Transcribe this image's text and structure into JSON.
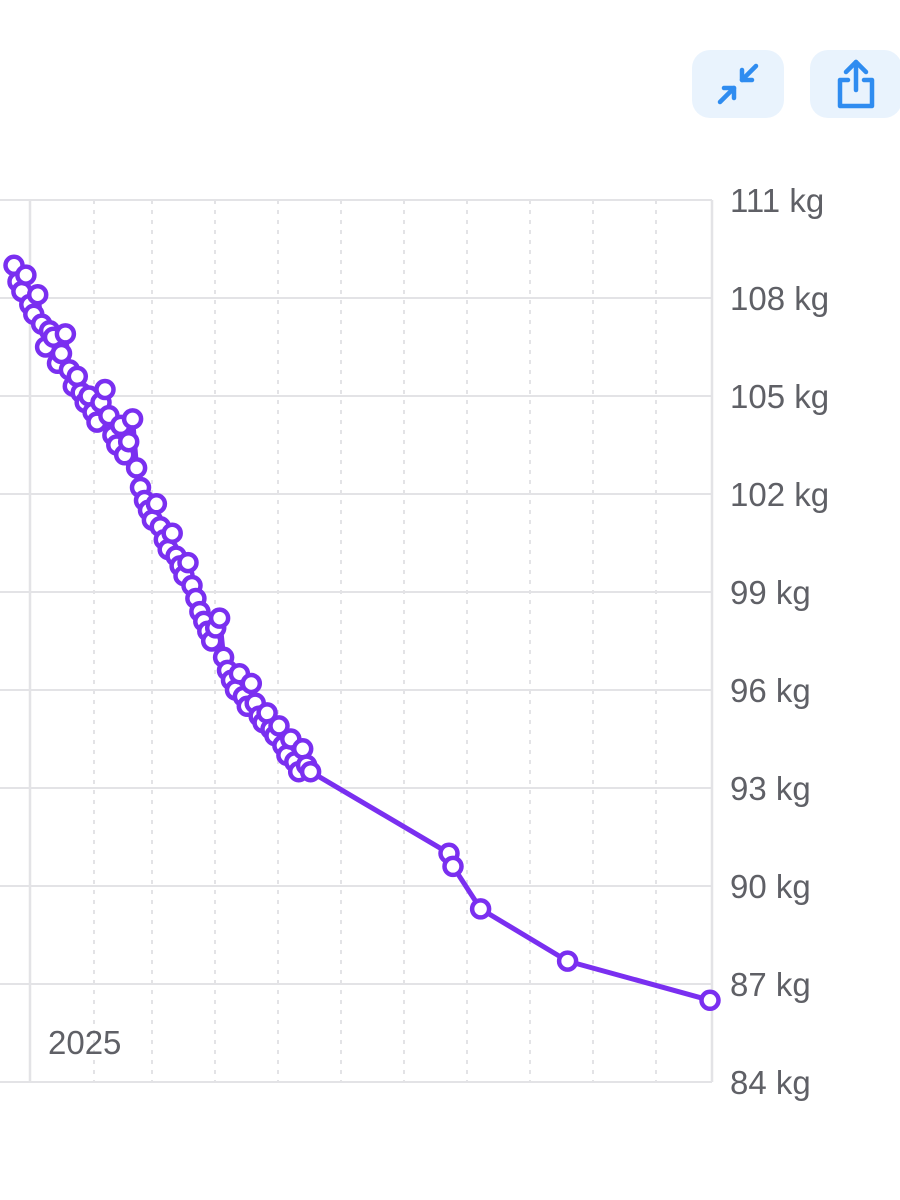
{
  "toolbar": {
    "collapse_icon": "arrows-collapse-icon",
    "share_icon": "share-icon",
    "accent": "#2f8cf0"
  },
  "colors": {
    "series": "#7a2ff0",
    "grid": "#e3e3e6",
    "tick_text": "#5f6066"
  },
  "chart_data": {
    "type": "line",
    "title": "",
    "xlabel": "",
    "ylabel": "",
    "x_annotation": "2025",
    "unit": "kg",
    "ylim": [
      84,
      111
    ],
    "yticks": [
      111,
      108,
      105,
      102,
      99,
      96,
      93,
      90,
      87,
      84
    ],
    "ytick_labels": [
      "111 kg",
      "108 kg",
      "105 kg",
      "102 kg",
      "99 kg",
      "96 kg",
      "93 kg",
      "90 kg",
      "87 kg",
      "84 kg"
    ],
    "grid": true,
    "x_index": [
      0,
      1,
      2,
      3,
      4,
      5,
      6,
      7,
      8,
      9,
      10,
      11,
      12,
      13,
      14,
      15,
      16,
      17,
      18,
      19,
      20,
      21,
      22,
      23,
      24,
      25,
      26,
      27,
      28,
      29,
      30,
      31,
      32,
      33,
      34,
      35,
      36,
      37,
      38,
      39,
      40,
      41,
      42,
      43,
      44,
      45,
      46,
      47,
      48,
      49,
      50,
      51,
      52,
      53,
      54,
      55,
      56,
      57,
      58,
      59,
      60,
      61,
      62,
      63,
      64,
      65,
      66,
      67,
      68,
      69,
      70,
      71,
      72,
      73,
      74,
      75,
      76,
      77,
      78,
      79,
      80,
      81,
      82,
      83,
      84,
      85,
      86,
      87,
      88,
      89,
      90,
      91,
      92,
      93,
      94,
      95,
      96,
      97,
      98,
      99,
      100,
      101,
      102,
      103,
      104,
      105,
      106,
      107,
      108,
      109,
      110,
      111,
      112,
      113,
      114,
      115,
      116,
      117,
      118,
      119,
      120,
      121,
      122,
      123,
      124,
      125,
      126,
      127,
      128,
      129,
      130,
      131,
      132,
      133,
      134,
      135,
      136,
      137,
      138,
      139,
      140,
      141,
      142,
      143,
      144,
      145,
      146,
      147,
      148,
      149,
      150,
      151,
      152,
      153,
      154,
      155,
      156,
      157,
      158,
      159,
      160,
      161,
      162,
      163,
      164,
      165,
      166,
      167,
      168,
      169,
      170,
      171,
      172,
      173,
      174,
      175,
      176,
      177,
      178,
      179,
      180,
      181,
      182,
      183,
      184,
      185,
      186,
      187,
      188,
      189,
      190,
      191,
      192,
      193,
      194,
      195,
      196,
      197,
      198,
      199,
      200,
      201,
      202,
      203,
      204,
      205,
      206,
      207,
      208,
      209,
      210,
      211,
      212,
      213,
      214,
      215,
      216,
      217,
      218,
      219,
      220,
      221,
      222,
      223,
      224,
      225,
      226,
      227,
      228,
      229,
      230,
      231,
      232,
      233,
      234,
      235,
      236,
      237,
      238,
      239,
      240,
      241,
      242,
      243,
      244,
      245,
      246,
      247,
      248,
      249,
      250,
      251,
      252,
      253,
      254,
      255,
      256,
      257,
      258,
      259,
      260,
      261,
      262,
      263,
      264,
      265,
      266,
      267,
      268,
      269,
      270,
      271,
      272,
      273,
      274,
      275,
      276,
      277,
      278,
      279,
      280,
      281,
      282,
      283,
      284,
      285,
      286,
      287,
      288,
      289,
      290,
      291,
      292,
      293,
      294,
      295,
      296,
      297,
      298,
      299,
      300,
      301,
      302,
      303,
      304,
      305,
      306,
      307,
      308,
      309,
      310,
      311,
      312,
      313,
      314,
      315,
      316,
      317,
      318,
      319,
      320,
      321,
      322,
      323,
      324,
      325,
      326,
      327,
      328,
      329,
      330,
      331,
      332,
      333,
      334,
      335,
      336,
      337,
      338,
      339,
      340,
      341,
      342,
      343,
      344,
      345,
      346,
      347,
      348,
      349,
      350,
      351,
      352,
      353,
      354,
      355,
      356,
      357,
      358,
      359,
      360,
      361,
      362,
      363,
      364,
      365,
      366,
      367,
      368,
      369,
      370,
      371,
      372,
      373,
      374,
      375,
      376,
      377,
      378,
      379,
      380,
      381,
      382,
      383,
      384,
      385,
      386,
      387,
      388,
      389,
      390,
      391,
      392,
      393,
      394,
      395,
      396,
      397,
      398,
      399,
      400,
      401,
      402,
      403,
      404,
      405,
      406,
      407,
      408,
      409,
      410,
      411,
      412,
      413,
      414,
      415,
      416,
      417,
      418,
      419,
      420,
      421,
      422,
      423,
      424,
      425,
      426,
      427,
      428,
      429,
      430,
      431,
      432,
      433,
      434,
      435,
      436,
      437,
      438,
      439,
      440,
      441,
      442,
      443,
      444,
      445,
      446,
      447,
      448,
      449,
      450,
      451,
      452,
      453,
      454,
      455,
      456,
      457,
      458,
      459,
      460,
      461,
      462,
      463,
      464,
      465,
      466,
      467,
      468,
      469,
      470,
      471,
      472,
      473,
      474,
      475,
      476,
      477,
      478,
      479,
      480,
      481,
      482,
      483,
      484,
      485,
      486,
      487,
      488,
      489,
      490,
      491,
      492,
      493,
      494,
      495,
      496,
      497,
      498,
      499,
      500,
      501,
      502,
      503,
      504,
      505,
      506,
      507,
      508,
      509,
      510,
      511,
      512,
      513,
      514,
      515,
      516,
      517,
      518,
      519,
      520,
      521,
      522,
      523,
      524,
      525,
      526,
      527,
      528,
      529,
      530,
      531,
      532,
      533,
      534,
      535,
      536,
      537,
      538,
      539,
      540,
      541,
      542,
      543,
      544,
      545,
      546,
      547,
      548,
      549,
      550,
      551,
      552,
      553,
      554,
      555,
      556,
      557,
      558,
      559,
      560,
      561,
      562,
      563,
      564,
      565,
      566,
      567,
      568,
      569,
      570,
      571,
      572,
      573,
      574,
      575,
      576,
      577,
      578,
      579,
      580,
      581,
      582,
      583,
      584,
      585,
      586,
      587,
      588,
      589,
      590,
      591,
      592,
      593,
      594,
      595,
      596,
      597,
      598,
      599,
      600,
      601,
      602,
      603,
      604,
      605,
      606,
      607,
      608,
      609,
      610,
      611,
      612,
      613,
      614,
      615,
      616,
      617,
      618,
      619,
      620,
      621,
      622,
      623,
      624,
      625,
      626,
      627,
      628,
      629,
      630,
      631,
      632,
      633,
      634,
      635,
      636,
      637,
      638,
      639,
      640,
      641,
      642,
      643,
      644,
      645,
      646,
      647,
      648,
      649,
      650,
      651,
      652,
      653,
      654,
      655,
      656,
      657,
      658,
      659,
      660,
      661,
      662,
      663,
      664,
      665,
      666,
      667,
      668,
      669,
      670,
      671,
      672,
      673,
      674,
      675,
      676,
      677,
      678,
      679,
      680,
      681,
      682,
      683,
      684,
      685,
      686,
      687,
      688,
      689,
      690,
      691,
      692,
      693,
      694,
      695,
      696,
      697,
      698,
      699,
      700,
      701,
      702,
      703,
      704,
      705,
      706,
      707,
      708,
      709,
      710,
      711,
      712,
      713,
      714,
      715,
      716,
      717,
      718,
      719,
      720,
      721,
      722,
      723,
      724,
      725,
      726,
      727,
      728,
      729,
      730,
      731,
      732,
      733,
      734,
      735,
      736,
      737,
      738,
      739,
      740,
      741,
      742,
      743,
      744,
      745,
      746,
      747,
      748,
      749,
      750,
      751,
      752,
      753,
      754,
      755,
      756,
      757,
      758,
      759,
      760,
      761,
      762,
      763,
      764,
      765,
      766,
      767,
      768,
      769,
      770,
      771,
      772,
      773,
      774,
      775,
      776,
      777,
      778,
      779,
      780,
      781,
      782,
      783,
      784,
      785,
      786,
      787,
      788,
      789,
      790,
      791,
      792,
      793,
      794,
      795,
      796,
      797,
      798,
      799,
      800,
      801,
      802,
      803,
      804,
      805,
      806,
      807,
      808,
      809,
      810,
      811,
      812,
      813,
      814,
      815,
      816,
      817,
      818,
      819,
      820,
      821,
      822,
      823,
      824,
      825,
      826,
      827,
      828,
      829,
      830,
      831,
      832,
      833,
      834,
      835,
      836,
      837,
      838,
      839,
      840,
      841,
      842,
      843,
      844,
      845,
      846,
      847,
      848,
      849,
      850,
      851,
      852,
      853,
      854,
      855,
      856,
      857,
      858,
      859,
      860,
      861,
      862,
      863,
      864,
      865,
      866,
      867,
      868,
      869,
      870,
      871,
      872,
      873,
      874,
      875,
      876,
      877,
      878,
      879,
      880,
      881,
      882,
      883,
      884,
      885,
      886,
      887,
      888,
      889,
      890,
      891,
      892,
      893,
      894,
      895,
      896,
      897,
      898,
      899,
      900,
      901,
      902,
      903,
      904,
      905,
      906,
      907,
      908,
      909,
      910,
      911,
      912,
      913,
      914,
      915,
      916,
      917,
      918,
      919,
      920,
      921,
      922,
      923,
      924,
      925,
      926,
      927,
      928,
      929,
      930,
      931,
      932,
      933,
      934,
      935,
      936,
      937,
      938,
      939,
      940,
      941,
      942,
      943,
      944,
      945,
      946,
      947,
      948,
      949,
      950,
      951,
      952,
      953,
      954,
      955,
      956,
      957,
      958,
      959,
      960,
      961,
      962,
      963,
      964,
      965,
      966,
      967,
      968,
      969,
      970,
      971,
      972,
      973,
      974,
      975,
      976,
      977,
      978,
      979,
      980,
      981,
      982,
      983,
      984,
      985,
      986,
      987,
      988,
      989,
      990,
      991,
      992,
      993,
      994,
      995,
      996,
      997,
      998,
      999
    ],
    "series": [
      {
        "points": [
          [
            0,
            109.0
          ],
          [
            2,
            108.5
          ],
          [
            4,
            108.2
          ],
          [
            6,
            108.7
          ],
          [
            8,
            107.8
          ],
          [
            10,
            107.5
          ],
          [
            12,
            108.1
          ],
          [
            14,
            107.2
          ],
          [
            16,
            106.5
          ],
          [
            18,
            107.0
          ],
          [
            20,
            106.8
          ],
          [
            22,
            106.0
          ],
          [
            24,
            106.3
          ],
          [
            26,
            106.9
          ],
          [
            28,
            105.8
          ],
          [
            30,
            105.3
          ],
          [
            32,
            105.6
          ],
          [
            34,
            105.1
          ],
          [
            36,
            104.8
          ],
          [
            38,
            105.0
          ],
          [
            40,
            104.5
          ],
          [
            42,
            104.2
          ],
          [
            44,
            104.8
          ],
          [
            46,
            105.2
          ],
          [
            48,
            104.4
          ],
          [
            50,
            103.8
          ],
          [
            52,
            103.5
          ],
          [
            54,
            104.1
          ],
          [
            56,
            103.2
          ],
          [
            58,
            103.6
          ],
          [
            60,
            104.3
          ],
          [
            62,
            102.8
          ],
          [
            64,
            102.2
          ],
          [
            66,
            101.8
          ],
          [
            68,
            101.5
          ],
          [
            70,
            101.2
          ],
          [
            72,
            101.7
          ],
          [
            74,
            101.0
          ],
          [
            76,
            100.6
          ],
          [
            78,
            100.3
          ],
          [
            80,
            100.8
          ],
          [
            82,
            100.1
          ],
          [
            84,
            99.8
          ],
          [
            86,
            99.5
          ],
          [
            88,
            99.9
          ],
          [
            90,
            99.2
          ],
          [
            92,
            98.8
          ],
          [
            94,
            98.4
          ],
          [
            96,
            98.1
          ],
          [
            98,
            97.8
          ],
          [
            100,
            97.5
          ],
          [
            102,
            97.9
          ],
          [
            104,
            98.2
          ],
          [
            106,
            97.0
          ],
          [
            108,
            96.6
          ],
          [
            110,
            96.3
          ],
          [
            112,
            96.0
          ],
          [
            114,
            96.5
          ],
          [
            116,
            95.8
          ],
          [
            118,
            95.5
          ],
          [
            120,
            96.2
          ],
          [
            122,
            95.6
          ],
          [
            124,
            95.2
          ],
          [
            126,
            95.0
          ],
          [
            128,
            95.3
          ],
          [
            130,
            94.8
          ],
          [
            132,
            94.6
          ],
          [
            134,
            94.9
          ],
          [
            136,
            94.3
          ],
          [
            138,
            94.0
          ],
          [
            140,
            94.5
          ],
          [
            142,
            93.8
          ],
          [
            144,
            93.5
          ],
          [
            146,
            94.2
          ],
          [
            148,
            93.7
          ],
          [
            150,
            93.5
          ],
          [
            220,
            91.0
          ],
          [
            222,
            90.6
          ],
          [
            236,
            89.3
          ],
          [
            280,
            87.7
          ],
          [
            352,
            86.5
          ]
        ]
      }
    ]
  }
}
